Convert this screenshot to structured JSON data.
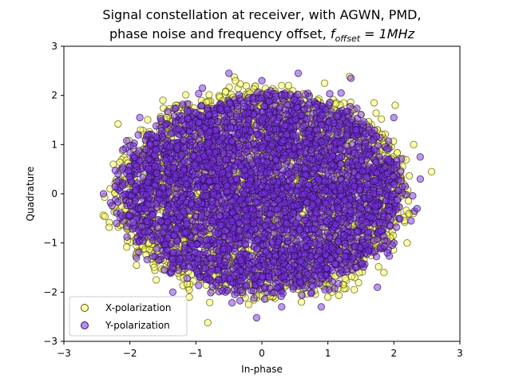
{
  "chart_data": {
    "type": "scatter",
    "title_line1": "Signal constellation at receiver, with AGWN, PMD,",
    "title_line2": "phase noise and frequency offset, ",
    "title_math": "f",
    "title_math_sub": "offset",
    "title_math_rest": " = 1MHz",
    "xlabel": "In-phase",
    "ylabel": "Quadrature",
    "xlim": [
      -3,
      3
    ],
    "ylim": [
      -3,
      3
    ],
    "xticks": [
      -3,
      -2,
      -1,
      0,
      1,
      2,
      3
    ],
    "yticks": [
      -3,
      -2,
      -1,
      0,
      1,
      2,
      3
    ],
    "xtick_labels": [
      "−3",
      "−2",
      "−1",
      "0",
      "1",
      "2",
      "3"
    ],
    "ytick_labels": [
      "−3",
      "−2",
      "−1",
      "0",
      "1",
      "2",
      "3"
    ],
    "grid": false,
    "legend_position": "lower-left",
    "series": [
      {
        "name": "X-polarization",
        "color": "#ffff66",
        "edge_color": "#555500",
        "distribution": "ring-like cloud of points centered at origin, mostly within radius ~2, outliers up to ~2.6",
        "points": [
          [
            2.57,
            0.45
          ],
          [
            -0.82,
            -2.62
          ],
          [
            1.33,
            2.38
          ],
          [
            -2.38,
            -0.46
          ],
          [
            2.02,
            1.8
          ],
          [
            -2.18,
            1.42
          ],
          [
            -2.25,
            0.6
          ],
          [
            2.3,
            -0.4
          ],
          [
            2.3,
            1.0
          ],
          [
            -1.9,
            -1.45
          ],
          [
            1.85,
            -1.6
          ],
          [
            -1.5,
            1.9
          ],
          [
            1.7,
            1.85
          ],
          [
            0.6,
            -2.2
          ],
          [
            -0.4,
            2.3
          ],
          [
            2.15,
            0.2
          ],
          [
            -2.05,
            -0.7
          ],
          [
            0.95,
            2.25
          ],
          [
            -1.1,
            -2.1
          ],
          [
            1.95,
            -0.9
          ],
          [
            -1.8,
            1.2
          ],
          [
            1.4,
            -1.95
          ],
          [
            -0.2,
            -2.25
          ],
          [
            0.3,
            2.2
          ],
          [
            2.2,
            -1.0
          ],
          [
            -2.3,
            0.1
          ],
          [
            1.0,
            -2.1
          ],
          [
            -1.3,
            1.8
          ],
          [
            1.75,
            1.3
          ],
          [
            -1.6,
            -1.75
          ]
        ]
      },
      {
        "name": "Y-polarization",
        "color": "#7b2fe0",
        "edge_color": "#2a1060",
        "distribution": "dense cloud of points centered at origin, mostly within radius ~2",
        "points": [
          [
            -0.08,
            -2.52
          ],
          [
            0.55,
            2.45
          ],
          [
            -0.5,
            2.45
          ],
          [
            1.35,
            2.35
          ],
          [
            -2.1,
            0.9
          ],
          [
            2.35,
            -0.3
          ],
          [
            -2.2,
            -0.6
          ],
          [
            1.75,
            -1.9
          ],
          [
            -1.85,
            1.55
          ],
          [
            2.0,
            1.55
          ],
          [
            -1.35,
            -2.0
          ],
          [
            0.9,
            -2.3
          ],
          [
            -2.4,
            0.0
          ],
          [
            2.4,
            0.3
          ],
          [
            0.0,
            2.3
          ],
          [
            -0.9,
            2.15
          ],
          [
            1.2,
            2.05
          ],
          [
            -1.9,
            -1.3
          ],
          [
            1.9,
            -1.2
          ],
          [
            0.3,
            -2.3
          ]
        ]
      }
    ]
  }
}
